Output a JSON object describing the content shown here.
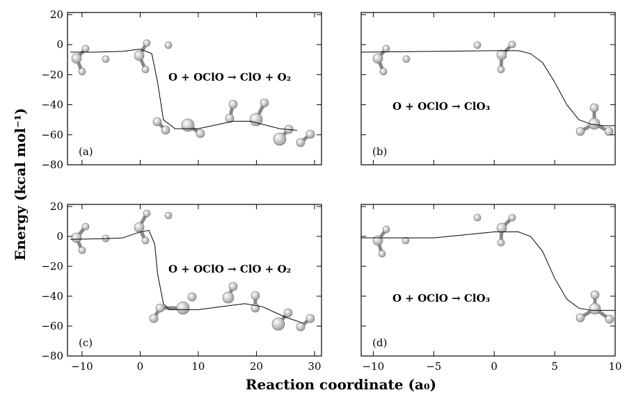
{
  "xlabel": "Reaction coordinate (a₀)",
  "ylabel": "Energy (kcal mol⁻¹)",
  "chart_data": [
    {
      "type": "line",
      "label": "(a)",
      "annotation": "O + OClO → ClO + O₂",
      "x": [
        -12,
        -8,
        -3,
        0,
        2,
        3,
        4,
        6,
        10,
        16,
        19,
        24,
        27
      ],
      "values": [
        -5,
        -5,
        -4.5,
        -3,
        -6,
        -25,
        -50,
        -56,
        -56,
        -51,
        -51,
        -56,
        -57
      ],
      "xlim": [
        -12.5,
        31.2
      ],
      "ylim": [
        -80,
        20
      ],
      "xticks": [
        -10,
        0,
        10,
        20,
        30
      ],
      "yticks": [
        {
          "value": 20,
          "label": "20"
        },
        {
          "value": 0,
          "label": "0"
        },
        {
          "value": -20,
          "label": "−20"
        },
        {
          "value": -40,
          "label": "−40"
        },
        {
          "value": -60,
          "label": "−60"
        },
        {
          "value": -80,
          "label": "−80"
        }
      ]
    },
    {
      "type": "line",
      "label": "(b)",
      "annotation": "O + OClO → ClO₃",
      "x": [
        -11,
        -5,
        0,
        2,
        3,
        4,
        5,
        6,
        7,
        8,
        9,
        10
      ],
      "values": [
        -5,
        -4.5,
        -4,
        -4,
        -6,
        -12,
        -25,
        -40,
        -50,
        -53,
        -54,
        -54
      ],
      "xlim": [
        -11,
        10
      ],
      "ylim": [
        -80,
        20
      ],
      "xticks": [
        -10,
        -5,
        0,
        5,
        10
      ],
      "yticks": [
        20,
        0,
        -20,
        -40,
        -60,
        -80
      ]
    },
    {
      "type": "line",
      "label": "(c)",
      "annotation": "O + OClO → ClO + O₂",
      "x": [
        -12,
        -6,
        -3,
        0,
        1.5,
        2.5,
        3,
        4,
        5,
        10,
        14,
        18,
        21,
        25,
        28
      ],
      "values": [
        -2,
        -1.5,
        -1,
        3,
        4,
        -5,
        -25,
        -45,
        -49,
        -49,
        -47,
        -45,
        -47,
        -54,
        -58
      ],
      "xlim": [
        -12.5,
        31.2
      ],
      "ylim": [
        -80,
        20
      ],
      "xticks": [
        {
          "value": -10,
          "label": "−10"
        },
        {
          "value": 0,
          "label": "0"
        },
        {
          "value": 10,
          "label": "10"
        },
        {
          "value": 20,
          "label": "20"
        },
        {
          "value": 30,
          "label": "30"
        }
      ],
      "yticks": [
        {
          "value": 20,
          "label": "20"
        },
        {
          "value": 0,
          "label": "0"
        },
        {
          "value": -20,
          "label": "−20"
        },
        {
          "value": -40,
          "label": "−40"
        },
        {
          "value": -60,
          "label": "−60"
        },
        {
          "value": -80,
          "label": "−80"
        }
      ]
    },
    {
      "type": "line",
      "label": "(d)",
      "annotation": "O + OClO → ClO₃",
      "x": [
        -11,
        -5,
        0,
        2,
        3,
        4,
        5,
        6,
        7,
        8,
        10
      ],
      "values": [
        -1,
        -1,
        3,
        3,
        0,
        -10,
        -28,
        -42,
        -48,
        -49.5,
        -49.5
      ],
      "xlim": [
        -11,
        10
      ],
      "ylim": [
        -80,
        20
      ],
      "xticks": [
        {
          "value": -10,
          "label": "−10"
        },
        {
          "value": -5,
          "label": "−5"
        },
        {
          "value": 0,
          "label": "0"
        },
        {
          "value": 5,
          "label": "5"
        },
        {
          "value": 10,
          "label": "10"
        }
      ],
      "yticks": [
        20,
        0,
        -20,
        -40,
        -60,
        -80
      ]
    }
  ]
}
